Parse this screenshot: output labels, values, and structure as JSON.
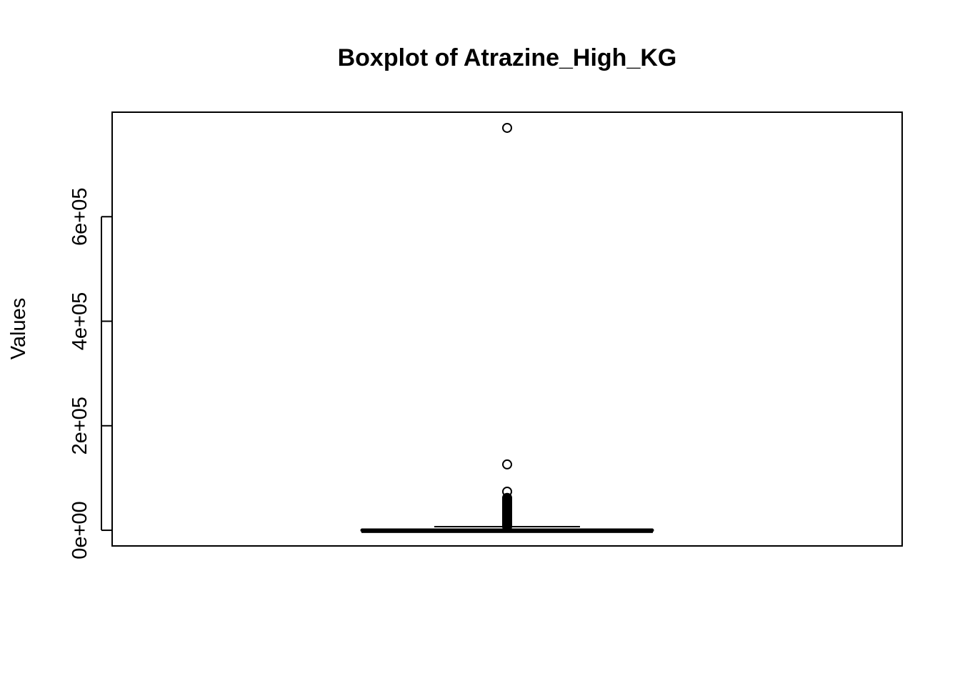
{
  "chart_data": {
    "type": "boxplot",
    "title": "Boxplot of Atrazine_High_KG",
    "xlabel": "",
    "ylabel": "Values",
    "ylim": [
      -30000,
      800000
    ],
    "yticks": [
      {
        "value": 0,
        "label": "0e+00"
      },
      {
        "value": 200000,
        "label": "2e+05"
      },
      {
        "value": 400000,
        "label": "4e+05"
      },
      {
        "value": 600000,
        "label": "6e+05"
      }
    ],
    "box": {
      "q1": 0,
      "median": 0,
      "q3": 300,
      "whisker_low": 0,
      "whisker_high": 7000
    },
    "outliers": [
      770000,
      126000,
      74000,
      62000,
      60000,
      58000,
      56000,
      54000,
      52000,
      50000,
      48000,
      46000,
      44000,
      42000,
      40000,
      38000,
      36000,
      34000,
      32000,
      30000,
      28000,
      26000,
      24000,
      22000,
      20000,
      18000,
      16000,
      14000,
      12000,
      10000,
      8500,
      7500
    ],
    "grid": false,
    "legend": "none",
    "colors": {
      "stroke": "#000000",
      "background": "#ffffff"
    }
  }
}
